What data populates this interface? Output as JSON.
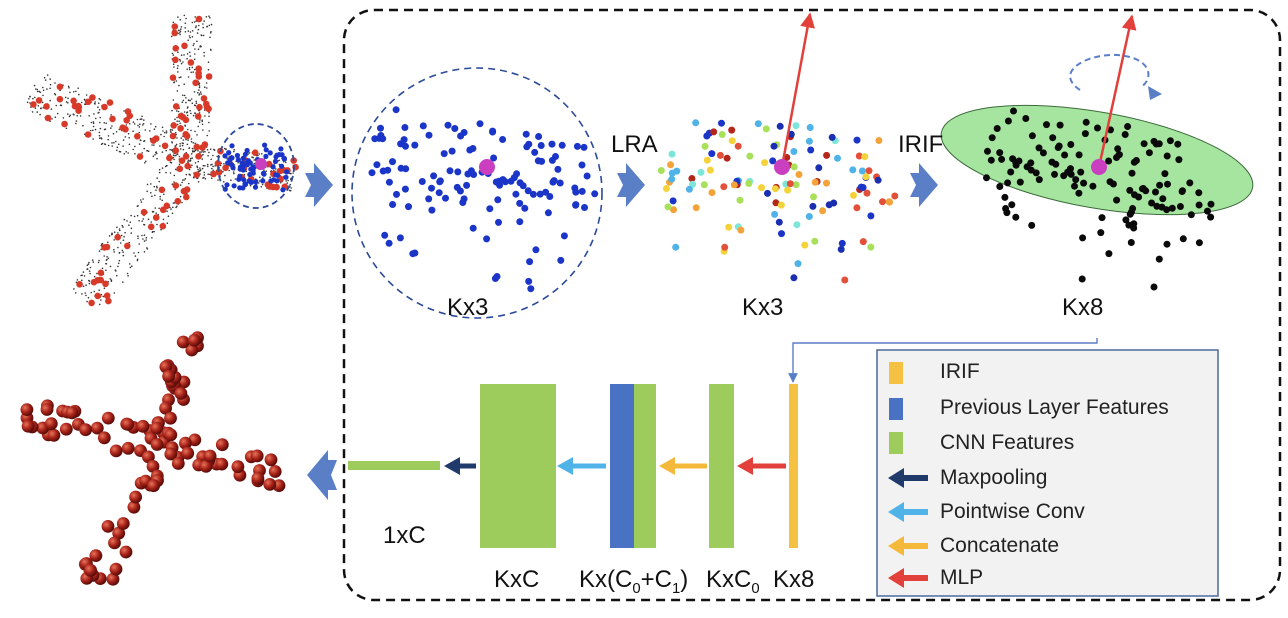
{
  "labels": {
    "lra": "LRA",
    "irif": "IRIF",
    "kx3_a": "Kx3",
    "kx3_b": "Kx3",
    "kx8_top": "Kx8",
    "onexc": "1xC",
    "kxc": "KxC",
    "kx_prefix": "Kx(C",
    "kx_sub0": "0",
    "kx_plus": "+C",
    "kx_sub1": "1",
    "kx_suffix": ")",
    "kxc0_main": "KxC",
    "kxc0_sub": "0",
    "kx8_bottom": "Kx8"
  },
  "legend": {
    "irif": "IRIF",
    "previous": "Previous Layer Features",
    "cnn": "CNN Features",
    "maxpool": "Maxpooling",
    "pointwise": "Pointwise Conv",
    "concat": "Concatenate",
    "mlp": "MLP"
  },
  "colors": {
    "irif": "#f4c142",
    "previous": "#4a72c4",
    "cnn": "#9dcb5c",
    "maxpool": "#1f3a6b",
    "pointwise": "#4fb3e8",
    "concat": "#f4b93a",
    "mlp": "#e2403a",
    "blue_points": "#1a35c8",
    "red_points": "#d83a2a",
    "center": "#c93fc0",
    "arrow": "#5b7fc7",
    "ellipse": "#a6e5a0"
  }
}
